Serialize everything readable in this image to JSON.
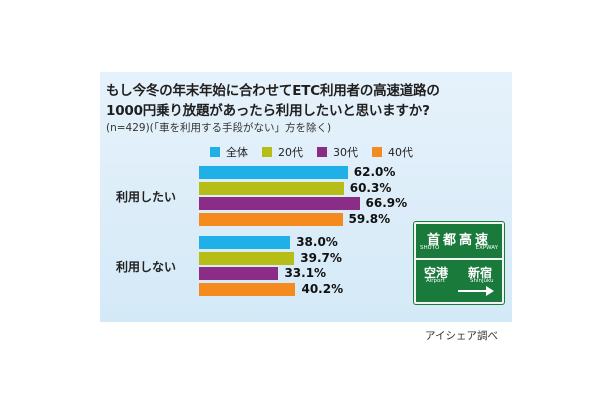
{
  "title_line1": "もし今冬の年末年始に合わせてETC利用者の高速道路の",
  "title_line2": "1000円乗り放題があったら利用したいと思いますか?",
  "note": "(n=429)(「車を利用する手段がない」方を除く)",
  "credit": "アイシェア調べ",
  "sign": {
    "title": "首都高速",
    "sub_left": "SHUTO",
    "sub_right": "EXPWAY",
    "city1": "空港",
    "city1_en": "Airport",
    "city2": "新宿",
    "city2_en": "Shinjuku",
    "colors": {
      "background": "#1a7a3c",
      "border": "#f3f3f3"
    }
  },
  "chart_data": {
    "type": "bar",
    "orientation": "horizontal",
    "categories": [
      "利用したい",
      "利用しない"
    ],
    "series": [
      {
        "name": "全体",
        "color": "#1fb0e8",
        "values": [
          62.0,
          38.0
        ]
      },
      {
        "name": "20代",
        "color": "#b5bd16",
        "values": [
          60.3,
          39.7
        ]
      },
      {
        "name": "30代",
        "color": "#8b2d86",
        "values": [
          66.9,
          33.1
        ]
      },
      {
        "name": "40代",
        "color": "#f58a1f",
        "values": [
          59.8,
          40.2
        ]
      }
    ],
    "value_suffix": "%",
    "xlim": [
      0,
      100
    ],
    "legend_position": "top",
    "grid": false
  }
}
